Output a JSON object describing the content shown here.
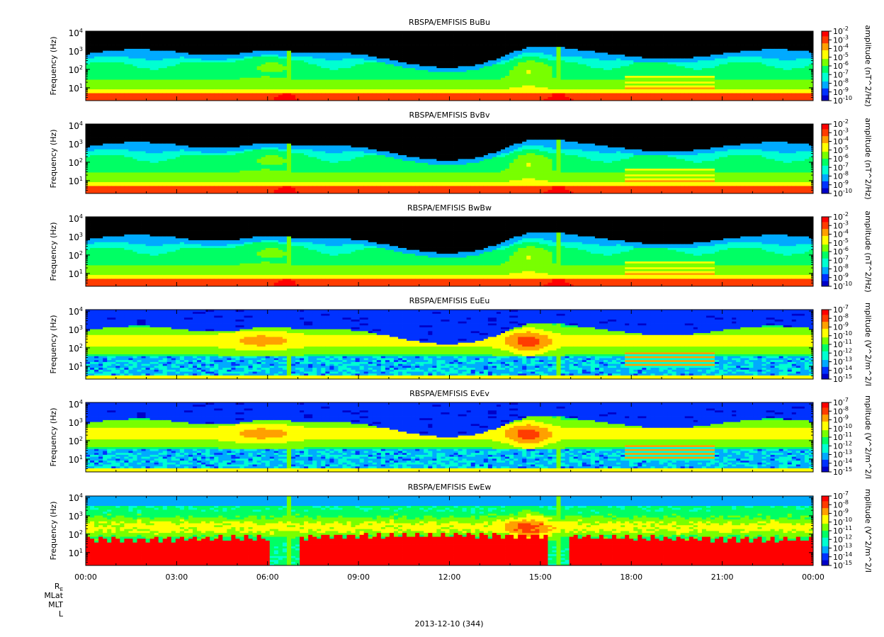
{
  "chart_data": {
    "type": "heatmap",
    "date_label": "2013-12-10 (344)",
    "x_tick_labels": [
      "00:00",
      "03:00",
      "06:00",
      "09:00",
      "12:00",
      "15:00",
      "18:00",
      "21:00",
      "00:00"
    ],
    "x_range_hours": [
      0,
      24
    ],
    "y_range_hz": [
      2,
      12000
    ],
    "y_scale": "log",
    "y_tick_exponents": [
      1,
      2,
      3,
      4
    ],
    "ephemeris_labels": [
      "R_E",
      "MLat",
      "MLT",
      "L"
    ],
    "colormap": [
      "#0000c8",
      "#0032ff",
      "#00aaff",
      "#00ffd2",
      "#00ff64",
      "#78ff00",
      "#ffff00",
      "#ffa000",
      "#ff3c00",
      "#ff0000"
    ],
    "panels": [
      {
        "title": "RBSPA/EMFISIS  BuBu",
        "ylabel": "Frequency (Hz)",
        "zlabel": "amplitude (nT^2/Hz)",
        "z_exponents": [
          -2,
          -3,
          -4,
          -5,
          -6,
          -7,
          -8,
          -9,
          -10
        ],
        "kind": "B"
      },
      {
        "title": "RBSPA/EMFISIS  BvBv",
        "ylabel": "Frequency (Hz)",
        "zlabel": "amplitude (nT^2/Hz)",
        "z_exponents": [
          -2,
          -3,
          -4,
          -5,
          -6,
          -7,
          -8,
          -9,
          -10
        ],
        "kind": "B"
      },
      {
        "title": "RBSPA/EMFISIS  BwBw",
        "ylabel": "Frequency (Hz)",
        "zlabel": "amplitude (nT^2/Hz)",
        "z_exponents": [
          -2,
          -3,
          -4,
          -5,
          -6,
          -7,
          -8,
          -9,
          -10
        ],
        "kind": "B"
      },
      {
        "title": "RBSPA/EMFISIS  EuEu",
        "ylabel": "Frequency (Hz)",
        "zlabel": "mplitude (V^2/m^2/I",
        "z_exponents": [
          -7,
          -8,
          -9,
          -10,
          -11,
          -12,
          -13,
          -14,
          -15
        ],
        "kind": "E"
      },
      {
        "title": "RBSPA/EMFISIS  EvEv",
        "ylabel": "Frequency (Hz)",
        "zlabel": "mplitude (V^2/m^2/I",
        "z_exponents": [
          -7,
          -8,
          -9,
          -10,
          -11,
          -12,
          -13,
          -14,
          -15
        ],
        "kind": "E"
      },
      {
        "title": "RBSPA/EMFISIS  EwEw",
        "ylabel": "Frequency (Hz)",
        "zlabel": "mplitude (V^2/m^2/I",
        "z_exponents": [
          -7,
          -8,
          -9,
          -10,
          -11,
          -12,
          -13,
          -14,
          -15
        ],
        "kind": "Ew"
      }
    ]
  }
}
